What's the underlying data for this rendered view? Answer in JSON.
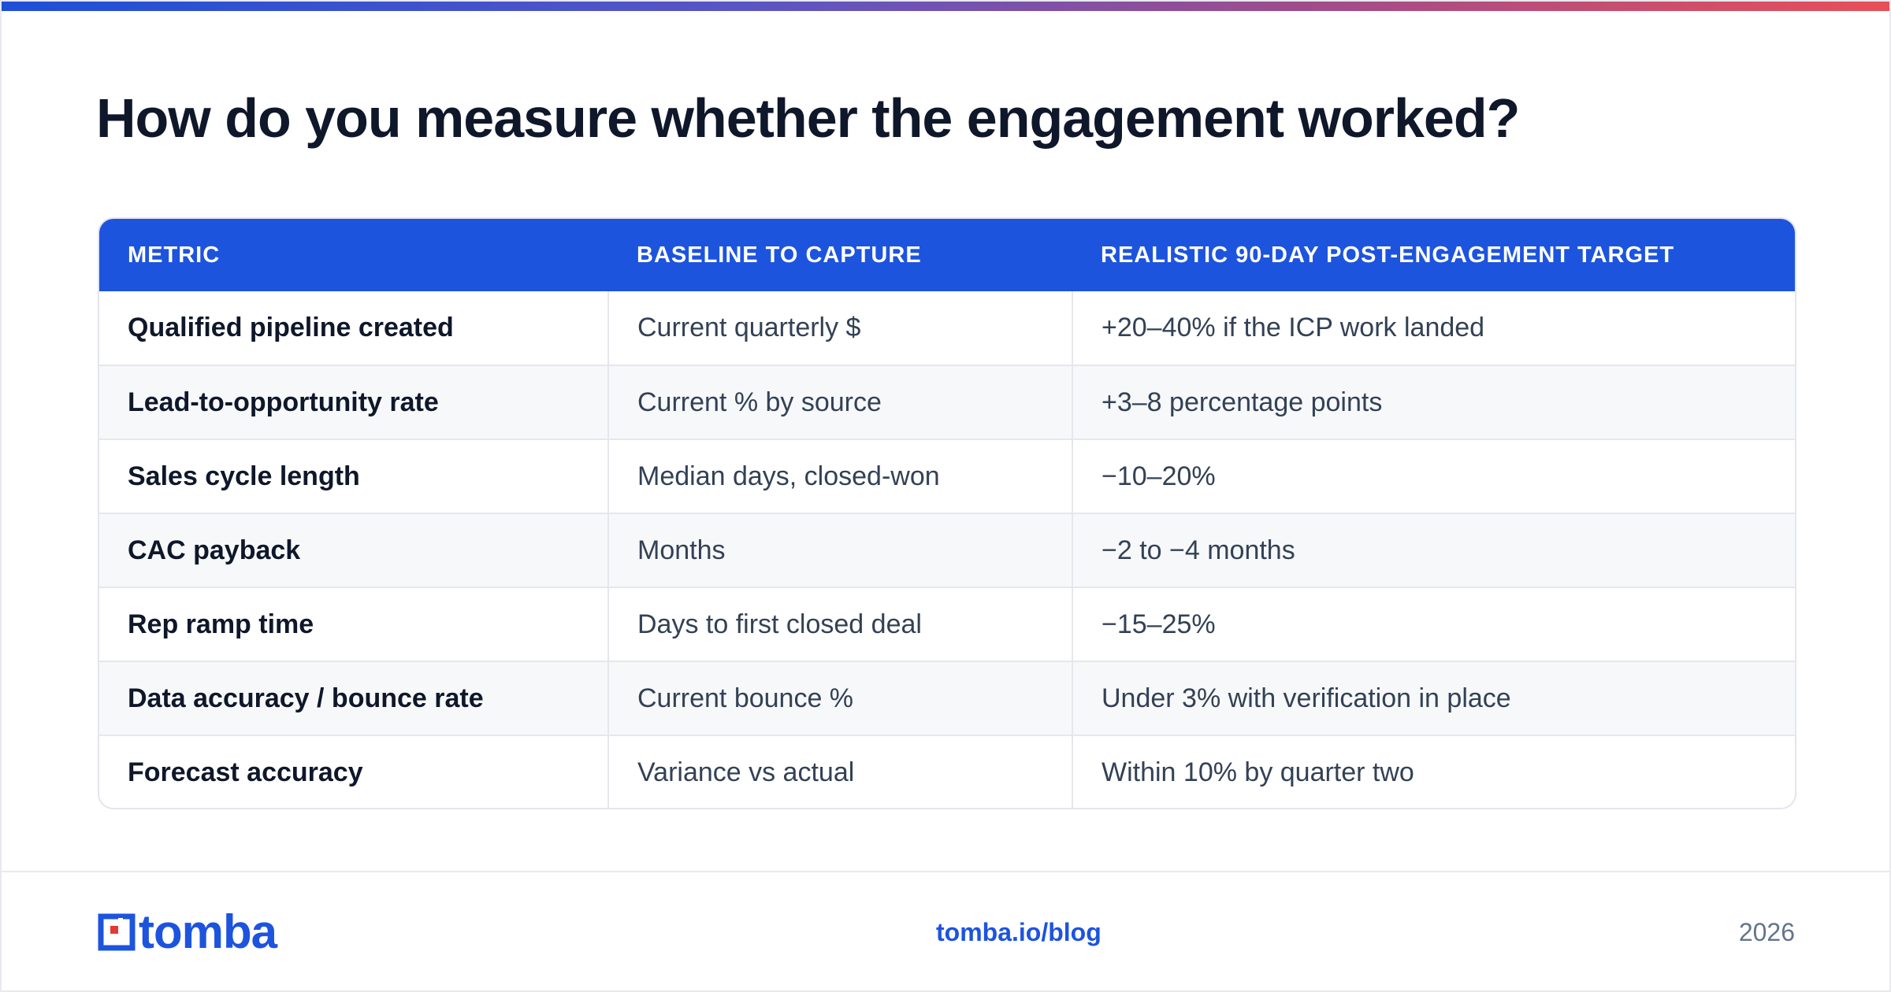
{
  "title": "How do you measure whether the engagement worked?",
  "table": {
    "headers": [
      "METRIC",
      "BASELINE TO CAPTURE",
      "REALISTIC 90-DAY POST-ENGAGEMENT TARGET"
    ],
    "rows": [
      [
        "Qualified pipeline created",
        "Current quarterly $",
        "+20–40% if the ICP work landed"
      ],
      [
        "Lead-to-opportunity rate",
        "Current % by source",
        "+3–8 percentage points"
      ],
      [
        "Sales cycle length",
        "Median days, closed-won",
        "−10–20%"
      ],
      [
        "CAC payback",
        "Months",
        "−2 to −4 months"
      ],
      [
        "Rep ramp time",
        "Days to first closed deal",
        "−15–25%"
      ],
      [
        "Data accuracy / bounce rate",
        "Current bounce %",
        "Under 3% with verification in place"
      ],
      [
        "Forecast accuracy",
        "Variance vs actual",
        "Within 10% by quarter two"
      ]
    ]
  },
  "footer": {
    "logo_text": "tomba",
    "link": "tomba.io/blog",
    "year": "2026"
  },
  "colors": {
    "accent": "#1d54de",
    "logo_red": "#e53935",
    "title": "#0f172a"
  },
  "icons": {
    "logo": "tomba-logo-icon"
  }
}
